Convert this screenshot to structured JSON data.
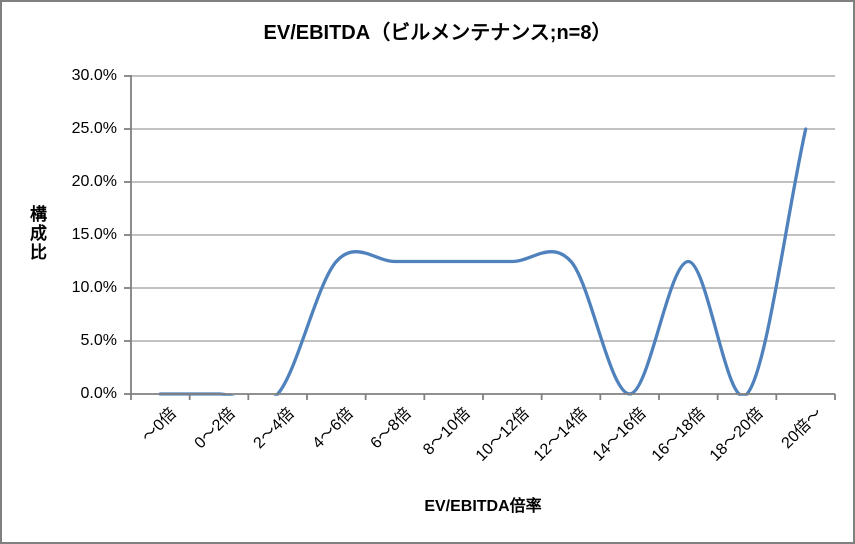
{
  "chart_data": {
    "type": "line",
    "title": "EV/EBITDA（ビルメンテナンス;n=8）",
    "xlabel": "EV/EBITDA倍率",
    "ylabel": "構成比",
    "categories": [
      "～0倍",
      "0～2倍",
      "2～4倍",
      "4～6倍",
      "6～8倍",
      "8～10倍",
      "10～12倍",
      "12～14倍",
      "14～16倍",
      "16～18倍",
      "18～20倍",
      "20倍～"
    ],
    "series": [
      {
        "name": "構成比",
        "values": [
          0.0,
          0.0,
          0.0,
          12.5,
          12.5,
          12.5,
          12.5,
          12.5,
          0.0,
          12.5,
          0.0,
          25.0
        ]
      }
    ],
    "values_unit": "%",
    "ylim": [
      0,
      30
    ],
    "y_tick_step": 5,
    "y_tick_labels": [
      "0.0%",
      "5.0%",
      "10.0%",
      "15.0%",
      "20.0%",
      "25.0%",
      "30.0%"
    ],
    "x_tick_rotation_deg": 45,
    "grid": "horizontal",
    "legend_position": "none",
    "line_style": "smooth",
    "marker": "none",
    "colors": {
      "line": "#4F81BD",
      "gridline": "#9C9C9C",
      "axis": "#808080",
      "text": "#000000",
      "chart_border": "#808080",
      "background": "#FFFFFF"
    }
  }
}
